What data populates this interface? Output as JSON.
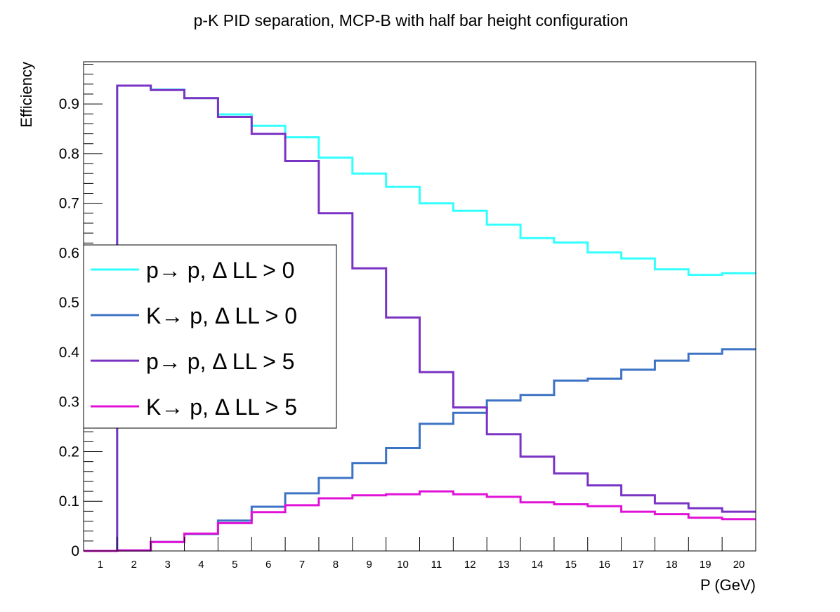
{
  "chart_data": {
    "type": "line",
    "title": "p-K PID separation, MCP-B with half bar height configuration",
    "xlabel": "P (GeV)",
    "ylabel": "Efficiency",
    "xlim": [
      0.5,
      20.5
    ],
    "ylim": [
      0,
      0.985
    ],
    "x_ticks": [
      1,
      2,
      3,
      4,
      5,
      6,
      7,
      8,
      9,
      10,
      11,
      12,
      13,
      14,
      15,
      16,
      17,
      18,
      19,
      20
    ],
    "y_ticks": [
      0,
      0.1,
      0.2,
      0.3,
      0.4,
      0.5,
      0.6,
      0.7,
      0.8,
      0.9
    ],
    "y_tick_labels": [
      "0",
      "0.1",
      "0.2",
      "0.3",
      "0.4",
      "0.5",
      "0.6",
      "0.7",
      "0.8",
      "0.9"
    ],
    "x_tick_labels": [
      "1",
      "2",
      "3",
      "4",
      "5",
      "6",
      "7",
      "8",
      "9",
      "10",
      "11",
      "12",
      "13",
      "14",
      "15",
      "16",
      "17",
      "18",
      "19",
      "20"
    ],
    "grid": false,
    "legend_position": "middle-left",
    "step": true,
    "bin_edges": [
      0.5,
      1.5,
      2.5,
      3.5,
      4.5,
      5.5,
      6.5,
      7.5,
      8.5,
      9.5,
      10.5,
      11.5,
      12.5,
      13.5,
      14.5,
      15.5,
      16.5,
      17.5,
      18.5,
      19.5,
      20.5
    ],
    "series": [
      {
        "name": "p→ p, Δ LL > 0",
        "color": "#33ffff",
        "values": [
          0,
          0.937,
          0.929,
          0.912,
          0.879,
          0.856,
          0.833,
          0.792,
          0.76,
          0.733,
          0.7,
          0.685,
          0.657,
          0.63,
          0.621,
          0.601,
          0.589,
          0.567,
          0.556,
          0.559
        ]
      },
      {
        "name": "K→ p, Δ LL > 0",
        "color": "#3d73c4",
        "values": [
          0,
          0.001,
          0.018,
          0.034,
          0.061,
          0.089,
          0.116,
          0.147,
          0.177,
          0.207,
          0.256,
          0.278,
          0.303,
          0.314,
          0.343,
          0.347,
          0.365,
          0.383,
          0.397,
          0.406
        ]
      },
      {
        "name": "p→ p, Δ LL > 5",
        "color": "#7a33c4",
        "values": [
          0,
          0.937,
          0.928,
          0.912,
          0.874,
          0.84,
          0.785,
          0.68,
          0.569,
          0.47,
          0.36,
          0.289,
          0.235,
          0.19,
          0.156,
          0.132,
          0.112,
          0.096,
          0.086,
          0.079
        ]
      },
      {
        "name": "K→ p, Δ LL > 5",
        "color": "#e012d8",
        "values": [
          0,
          0.001,
          0.018,
          0.035,
          0.056,
          0.078,
          0.092,
          0.106,
          0.112,
          0.114,
          0.12,
          0.114,
          0.109,
          0.098,
          0.094,
          0.09,
          0.079,
          0.074,
          0.067,
          0.064
        ]
      }
    ]
  }
}
